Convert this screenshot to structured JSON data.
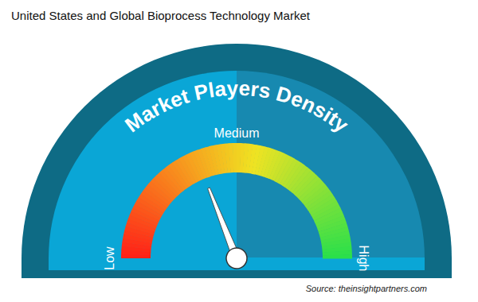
{
  "chart_data": {
    "type": "gauge",
    "title": "United States and Global Bioprocess Technology Market",
    "subtitle": "Market Players Density",
    "annotations": [
      "Source: theinsightpartners.com"
    ],
    "values": [
      38
    ],
    "ylim": [
      0,
      100
    ],
    "yticks": [
      {
        "value": 0,
        "label": "Low"
      },
      {
        "value": 50,
        "label": "Medium"
      },
      {
        "value": 100,
        "label": "High"
      }
    ]
  }
}
